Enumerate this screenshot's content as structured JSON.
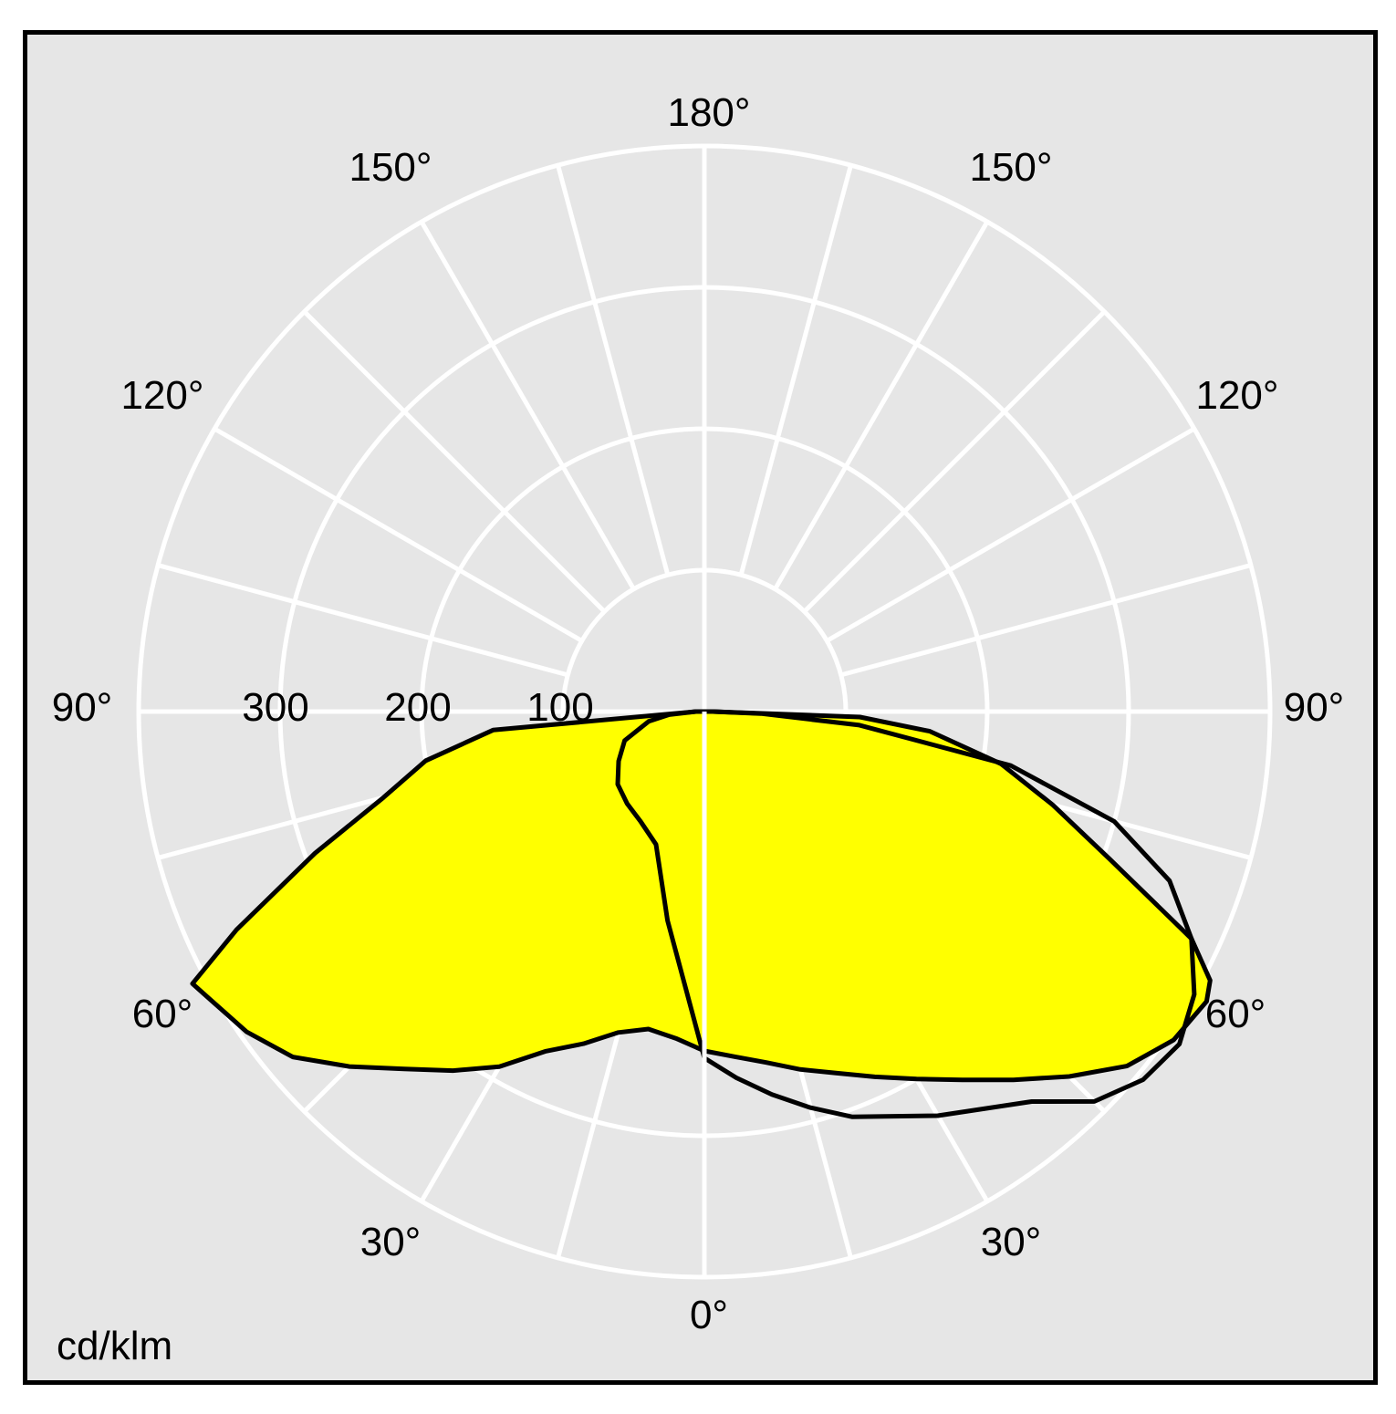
{
  "chart_data": {
    "type": "polar",
    "unit_label": "cd/klm",
    "radial_ticks": [
      "100",
      "200",
      "300"
    ],
    "rmax": 400,
    "angle_labels": {
      "left": [
        "180°",
        "150°",
        "120°",
        "90°",
        "60°",
        "30°",
        "0°"
      ],
      "right": [
        "150°",
        "120°",
        "90°",
        "60°",
        "30°"
      ]
    },
    "fill_color": "#ffff00",
    "grid_color": "#ffffff",
    "background_color": "#e6e6e6",
    "series": [
      {
        "plane": "C0-C180",
        "filled": true,
        "points": [
          [
            -90,
            6
          ],
          [
            -85,
            150
          ],
          [
            -80,
            200
          ],
          [
            -75,
            235
          ],
          [
            -70,
            293
          ],
          [
            -65,
            365
          ],
          [
            -62,
            410
          ],
          [
            -60,
            405
          ],
          [
            -55,
            395
          ],
          [
            -50,
            380
          ],
          [
            -45,
            355
          ],
          [
            -40,
            330
          ],
          [
            -35,
            310
          ],
          [
            -30,
            290
          ],
          [
            -25,
            265
          ],
          [
            -20,
            250
          ],
          [
            -15,
            235
          ],
          [
            -10,
            228
          ],
          [
            -5,
            232
          ],
          [
            0,
            240
          ],
          [
            5,
            245
          ],
          [
            10,
            252
          ],
          [
            15,
            262
          ],
          [
            20,
            272
          ],
          [
            25,
            285
          ],
          [
            30,
            300
          ],
          [
            35,
            318
          ],
          [
            40,
            340
          ],
          [
            45,
            365
          ],
          [
            50,
            390
          ],
          [
            55,
            405
          ],
          [
            60,
            410
          ],
          [
            62,
            405
          ],
          [
            65,
            380
          ],
          [
            70,
            305
          ],
          [
            75,
            255
          ],
          [
            80,
            213
          ],
          [
            85,
            160
          ],
          [
            88,
            110
          ],
          [
            90,
            6
          ]
        ]
      },
      {
        "plane": "C90-C270",
        "filled": false,
        "points": [
          [
            -90,
            6
          ],
          [
            -85,
            25
          ],
          [
            -80,
            40
          ],
          [
            -70,
            60
          ],
          [
            -60,
            70
          ],
          [
            -50,
            80
          ],
          [
            -40,
            85
          ],
          [
            -30,
            90
          ],
          [
            -20,
            100
          ],
          [
            -10,
            150
          ],
          [
            0,
            245
          ],
          [
            5,
            260
          ],
          [
            10,
            275
          ],
          [
            15,
            290
          ],
          [
            20,
            305
          ],
          [
            30,
            330
          ],
          [
            40,
            360
          ],
          [
            45,
            390
          ],
          [
            50,
            405
          ],
          [
            55,
            410
          ],
          [
            60,
            400
          ],
          [
            65,
            380
          ],
          [
            70,
            350
          ],
          [
            75,
            300
          ],
          [
            80,
            220
          ],
          [
            85,
            110
          ],
          [
            88,
            40
          ],
          [
            90,
            6
          ]
        ]
      }
    ]
  }
}
